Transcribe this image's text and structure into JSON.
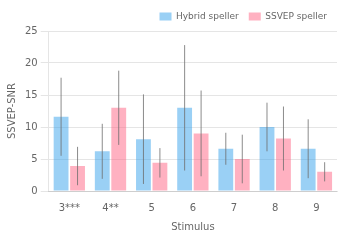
{
  "chart_data": {
    "type": "bar",
    "xlabel": "Stimulus",
    "ylabel": "SSVEP-SNR",
    "categories": [
      "3***",
      "4**",
      "5",
      "6",
      "7",
      "8",
      "9"
    ],
    "series": [
      {
        "name": "Hybrid speller",
        "values": [
          11.6,
          6.2,
          8.1,
          13.0,
          6.6,
          10.0,
          6.6
        ],
        "errors": [
          6.1,
          4.3,
          7.0,
          9.8,
          2.5,
          3.8,
          4.6
        ]
      },
      {
        "name": "SSVEP speller",
        "values": [
          3.9,
          13.0,
          4.4,
          9.0,
          5.0,
          8.2,
          3.0
        ],
        "errors": [
          3.0,
          5.8,
          2.3,
          6.7,
          3.8,
          5.0,
          1.5
        ]
      }
    ],
    "ylim": [
      0,
      25
    ],
    "yticks": [
      0,
      5,
      10,
      15,
      20,
      25
    ],
    "grid": true,
    "legend": "upper right"
  }
}
